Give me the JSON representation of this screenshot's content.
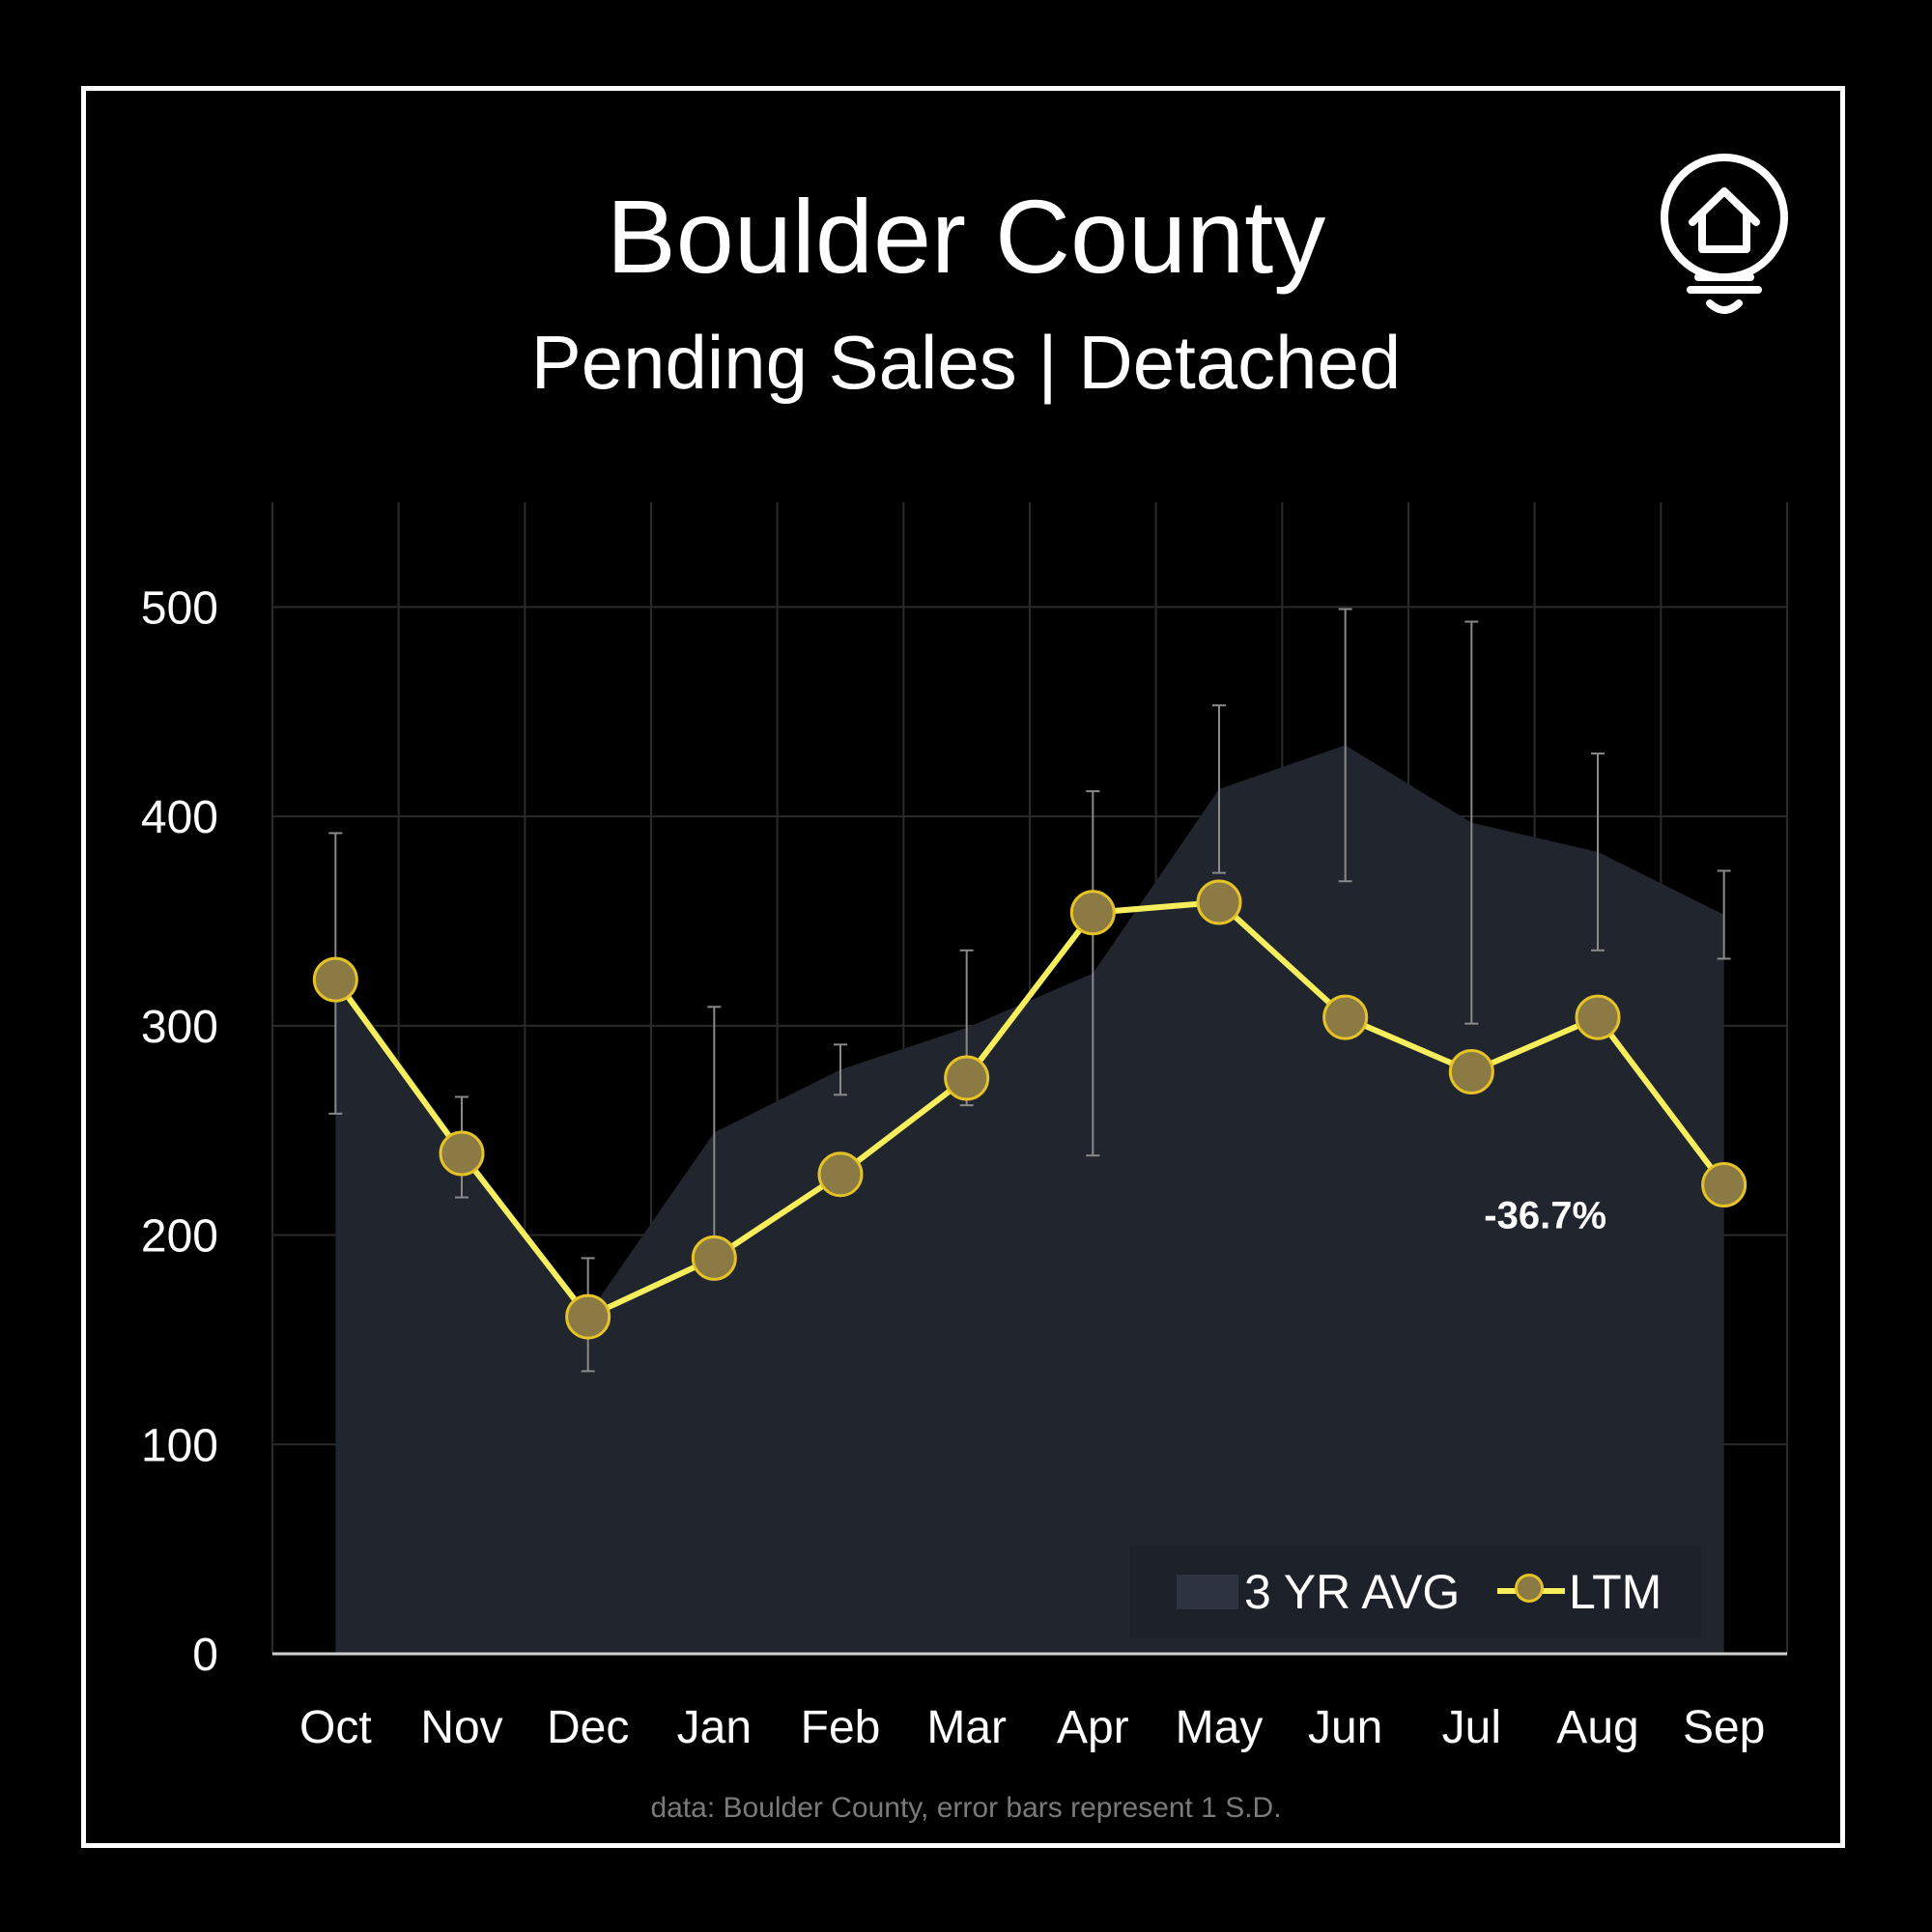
{
  "header": {
    "title": "Boulder County",
    "subtitle": "Pending Sales | Detached"
  },
  "source_note": "data: Boulder County,  error bars represent 1 S.D.",
  "logo": {
    "icon": "house-lightbulb-icon"
  },
  "colors": {
    "background": "#000000",
    "area_fill": "#20252e",
    "ltm_line": "#f6ee5c",
    "ltm_marker_fill": "#8c7a45",
    "ltm_marker_stroke": "#e5c326",
    "error_bar": "#8a8a8a",
    "grid": "#2a2a2a"
  },
  "legend": {
    "placement": "bottom-right",
    "avg_label": "3 YR AVG",
    "ltm_label": "LTM"
  },
  "chart_data": {
    "type": "line",
    "categories": [
      "Oct",
      "Nov",
      "Dec",
      "Jan",
      "Feb",
      "Mar",
      "Apr",
      "May",
      "Jun",
      "Jul",
      "Aug",
      "Sep"
    ],
    "ylim": [
      0,
      550
    ],
    "yticks": [
      0,
      100,
      200,
      300,
      400,
      500
    ],
    "grid": true,
    "series": [
      {
        "name": "3 YR AVG",
        "kind": "area",
        "values": [
          325,
          242,
          162,
          249,
          279,
          299,
          325,
          413,
          434,
          397,
          383,
          353
        ],
        "error": [
          67,
          24,
          27,
          60,
          12,
          37,
          87,
          40,
          65,
          96,
          47,
          21
        ]
      },
      {
        "name": "LTM",
        "kind": "line",
        "values": [
          322,
          239,
          161,
          189,
          229,
          275,
          354,
          359,
          304,
          278,
          304,
          224
        ]
      }
    ],
    "annotations": [
      {
        "category": "Sep",
        "text": "-36.7%"
      }
    ]
  }
}
